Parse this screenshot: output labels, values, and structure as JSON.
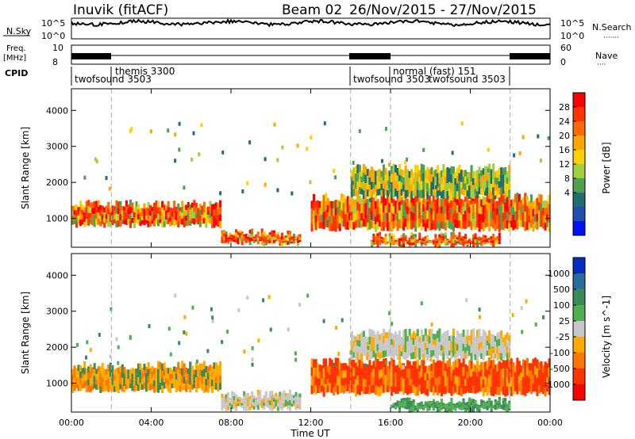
{
  "header": {
    "station": "Inuvik",
    "method": "(fitACF)",
    "beam": "Beam 02",
    "date_range": "26/Nov/2015 - 27/Nov/2015"
  },
  "top_panels": {
    "nsky_label": "N.Sky",
    "nsky_ticks": [
      "10^5",
      "10^0"
    ],
    "nsearch_label": "N.Search",
    "nsearch_ticks": [
      "10^5",
      "10^0"
    ],
    "freq_label": "Freq.",
    "freq_unit": "[MHz]",
    "freq_ticks": [
      "10",
      "8"
    ],
    "nave_label": "Nave",
    "nave_ticks": [
      "60",
      "0"
    ],
    "cpid_label": "CPID",
    "cpid_segments": [
      {
        "label": "twofsound 3503",
        "start": "00:00"
      },
      {
        "label": "themis 3300",
        "start": "02:00"
      },
      {
        "label": "twofsound 3503",
        "start": "14:00"
      },
      {
        "label": "normal (fast) 151",
        "start": "16:00"
      },
      {
        "label": "twofsound 3503",
        "start": "16:00"
      }
    ]
  },
  "chart_data": [
    {
      "type": "heatmap",
      "name": "power",
      "ylabel": "Slant Range [km]",
      "colorbar_label": "Power [dB]",
      "colorbar_ticks": [
        "28",
        "24",
        "20",
        "16",
        "12",
        "8",
        "4"
      ],
      "colorbar_colors": [
        "#ff0000",
        "#ff3300",
        "#ff6a00",
        "#ffa500",
        "#ffd000",
        "#a0d040",
        "#50a050",
        "#206e70",
        "#2050b0",
        "#0010ff"
      ],
      "yticks": [
        1000,
        2000,
        3000,
        4000
      ],
      "ylim": [
        200,
        4600
      ],
      "xlim_hours": [
        0,
        24
      ],
      "dashed_lines_hours": [
        2,
        14,
        16,
        22
      ],
      "regions": [
        {
          "t0": 0.0,
          "t1": 7.5,
          "r0": 800,
          "r1": 1400,
          "level": "high"
        },
        {
          "t0": 7.5,
          "t1": 11.5,
          "r0": 300,
          "r1": 600,
          "level": "high"
        },
        {
          "t0": 12.0,
          "t1": 24.0,
          "r0": 700,
          "r1": 1600,
          "level": "high"
        },
        {
          "t0": 15.0,
          "t1": 21.5,
          "r0": 250,
          "r1": 500,
          "level": "high"
        },
        {
          "t0": 14.0,
          "t1": 22.0,
          "r0": 1600,
          "r1": 2400,
          "level": "mid"
        }
      ]
    },
    {
      "type": "heatmap",
      "name": "velocity",
      "ylabel": "Slant Range [km]",
      "xlabel": "Time UT",
      "colorbar_label": "Velocity [m s^-1]",
      "colorbar_ticks": [
        "1000",
        "500",
        "100",
        "25",
        "-25",
        "-100",
        "-500",
        "-1000"
      ],
      "colorbar_colors": [
        "#0030c0",
        "#2a6ea0",
        "#3a8a5a",
        "#50b050",
        "#c8c8c8",
        "#ffaa00",
        "#ff7700",
        "#ff3300",
        "#ff0000"
      ],
      "yticks": [
        1000,
        2000,
        3000,
        4000
      ],
      "xticks": [
        "00:00",
        "04:00",
        "08:00",
        "12:00",
        "16:00",
        "20:00",
        "00:00"
      ],
      "ylim": [
        200,
        4600
      ],
      "xlim_hours": [
        0,
        24
      ],
      "dashed_lines_hours": [
        2,
        14,
        16,
        22
      ],
      "regions": [
        {
          "t0": 0.0,
          "t1": 7.5,
          "r0": 800,
          "r1": 1500,
          "level": "-100"
        },
        {
          "t0": 7.5,
          "t1": 11.5,
          "r0": 300,
          "r1": 700,
          "level": "-25"
        },
        {
          "t0": 12.0,
          "t1": 24.0,
          "r0": 700,
          "r1": 1600,
          "level": "-500"
        },
        {
          "t0": 14.0,
          "t1": 22.0,
          "r0": 1700,
          "r1": 2400,
          "level": "-25"
        },
        {
          "t0": 16.0,
          "t1": 22.0,
          "r0": 250,
          "r1": 500,
          "level": "100"
        }
      ]
    }
  ]
}
